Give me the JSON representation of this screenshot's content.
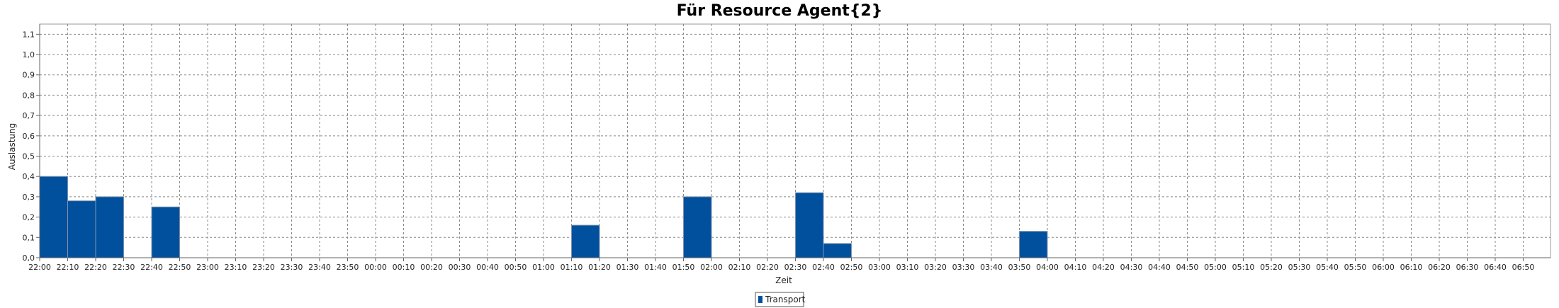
{
  "chart_data": {
    "type": "bar",
    "title": "Für Resource Agent{2}",
    "xlabel": "Zeit",
    "ylabel": "Auslastung",
    "ylim": [
      0,
      1.15
    ],
    "yticks": [
      "0,0",
      "0,1",
      "0,2",
      "0,3",
      "0,4",
      "0,5",
      "0,6",
      "0,7",
      "0,8",
      "0,9",
      "1,0",
      "1,1"
    ],
    "grid": true,
    "legend_position": "bottom-center",
    "categories": [
      "22:00",
      "22:10",
      "22:20",
      "22:30",
      "22:40",
      "22:50",
      "23:00",
      "23:10",
      "23:20",
      "23:30",
      "23:40",
      "23:50",
      "00:00",
      "00:10",
      "00:20",
      "00:30",
      "00:40",
      "00:50",
      "01:00",
      "01:10",
      "01:20",
      "01:30",
      "01:40",
      "01:50",
      "02:00",
      "02:10",
      "02:20",
      "02:30",
      "02:40",
      "02:50",
      "03:00",
      "03:10",
      "03:20",
      "03:30",
      "03:40",
      "03:50",
      "04:00",
      "04:10",
      "04:20",
      "04:30",
      "04:40",
      "04:50",
      "05:00",
      "05:10",
      "05:20",
      "05:30",
      "05:40",
      "05:50",
      "06:00",
      "06:10",
      "06:20",
      "06:30",
      "06:40",
      "06:50"
    ],
    "series": [
      {
        "name": "Transport",
        "color": "#00509E",
        "values": [
          0.4,
          0.28,
          0.3,
          0,
          0.25,
          0,
          0,
          0,
          0,
          0,
          0,
          0,
          0,
          0,
          0,
          0,
          0,
          0,
          0,
          0.16,
          0,
          0,
          0,
          0.3,
          0,
          0,
          0,
          0.32,
          0.07,
          0,
          0,
          0,
          0,
          0,
          0,
          0.13,
          0,
          0,
          0,
          0,
          0,
          0,
          0,
          0,
          0,
          0,
          0,
          0,
          0,
          0,
          0,
          0,
          0,
          0
        ]
      }
    ]
  }
}
